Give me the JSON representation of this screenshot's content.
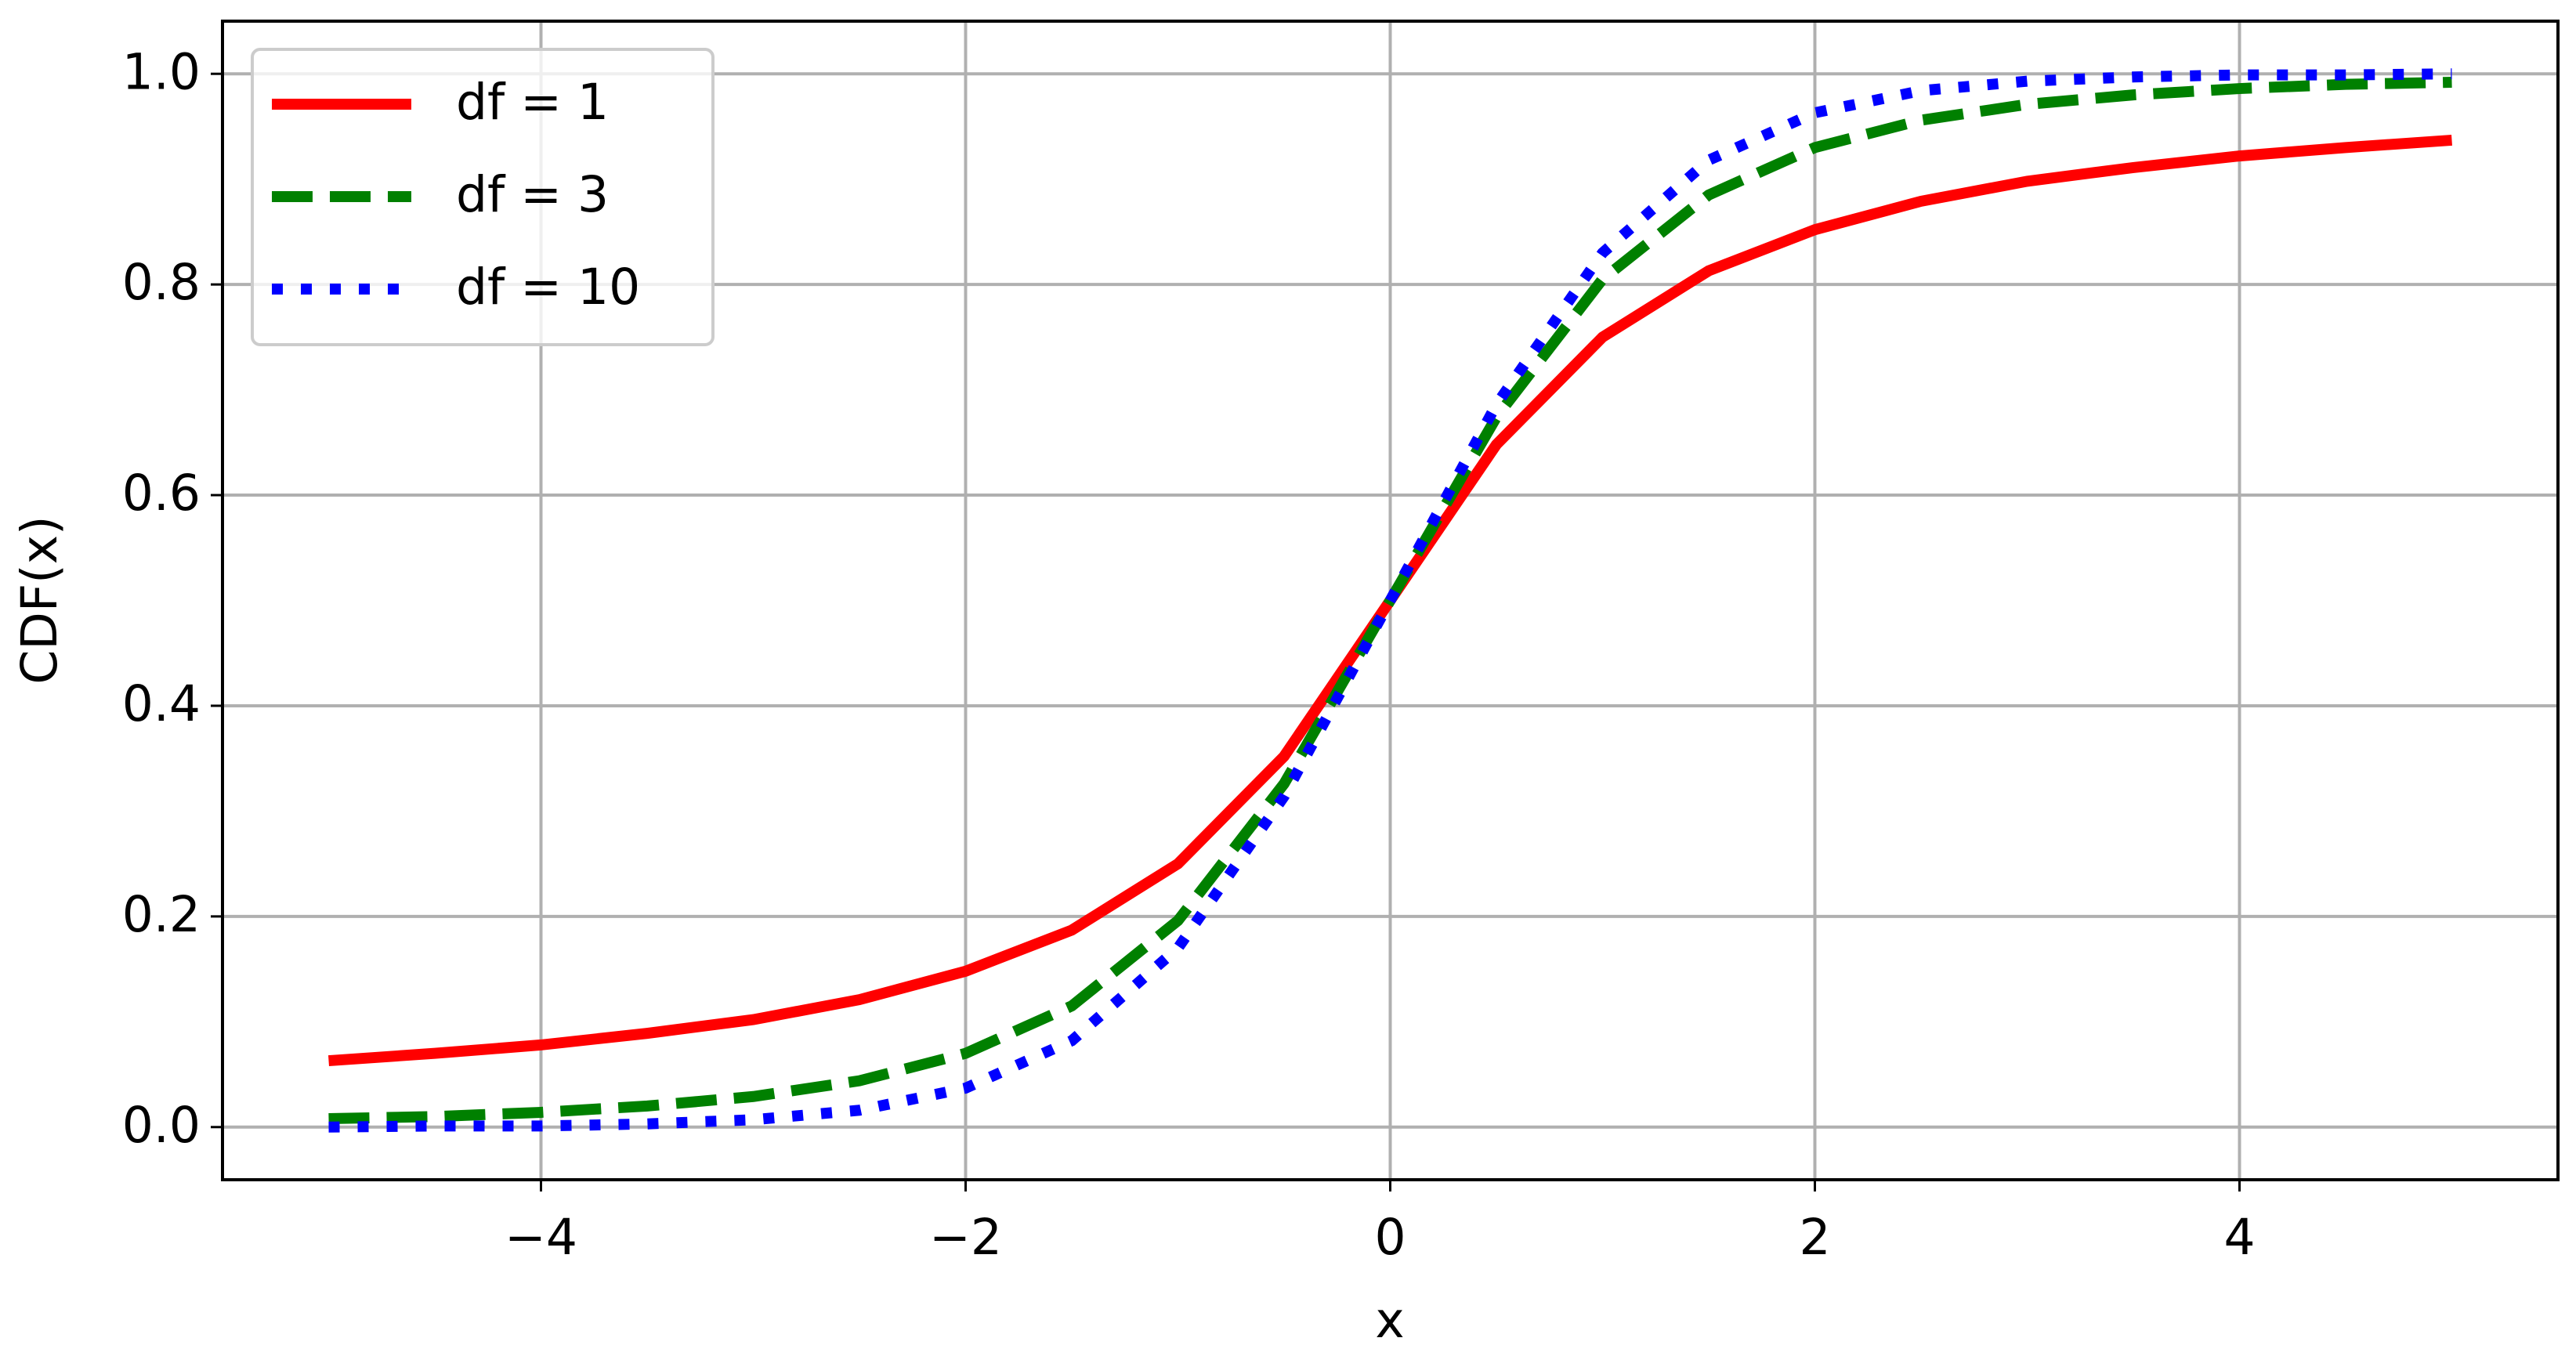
{
  "chart_data": {
    "type": "line",
    "xlabel": "x",
    "ylabel": "CDF(x)",
    "x": [
      -5,
      -4.5,
      -4,
      -3.5,
      -3,
      -2.5,
      -2,
      -1.5,
      -1,
      -0.5,
      0,
      0.5,
      1,
      1.5,
      2,
      2.5,
      3,
      3.5,
      4,
      4.5,
      5
    ],
    "series": [
      {
        "name": "df = 1",
        "color": "#ff0000",
        "linestyle": "solid",
        "values": [
          0.063,
          0.07,
          0.078,
          0.089,
          0.102,
          0.121,
          0.148,
          0.187,
          0.25,
          0.352,
          0.5,
          0.648,
          0.75,
          0.813,
          0.852,
          0.879,
          0.898,
          0.911,
          0.922,
          0.93,
          0.937
        ]
      },
      {
        "name": "df = 3",
        "color": "#008000",
        "linestyle": "dashed",
        "values": [
          0.008,
          0.01,
          0.014,
          0.02,
          0.029,
          0.044,
          0.07,
          0.115,
          0.196,
          0.326,
          0.5,
          0.674,
          0.805,
          0.885,
          0.93,
          0.956,
          0.971,
          0.98,
          0.986,
          0.99,
          0.992
        ]
      },
      {
        "name": "df = 10",
        "color": "#0000ff",
        "linestyle": "dotted",
        "values": [
          0.0,
          0.001,
          0.001,
          0.003,
          0.007,
          0.016,
          0.037,
          0.082,
          0.17,
          0.314,
          0.5,
          0.686,
          0.83,
          0.918,
          0.963,
          0.984,
          0.993,
          0.997,
          0.999,
          0.999,
          1.0
        ]
      }
    ],
    "xlim": [
      -5.5,
      5.5
    ],
    "ylim": [
      -0.05,
      1.05
    ],
    "xticks": [
      {
        "value": -4,
        "label": "−4"
      },
      {
        "value": -2,
        "label": "−2"
      },
      0,
      2,
      4
    ],
    "yticks": [
      {
        "value": 0,
        "label": "0.0"
      },
      0.2,
      0.4,
      0.6,
      0.8,
      {
        "value": 1,
        "label": "1.0"
      }
    ],
    "grid": true,
    "legend": "upper left"
  }
}
